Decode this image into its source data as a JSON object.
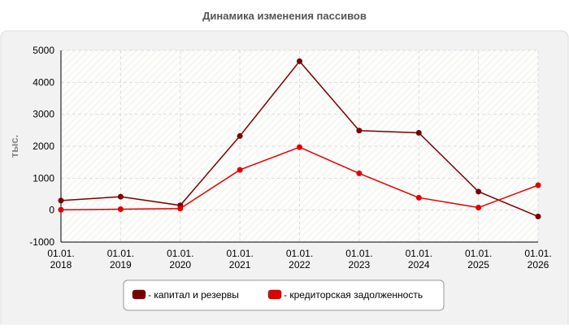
{
  "chart_data": {
    "type": "line",
    "title": "Динамика изменения пассивов",
    "y_label": "тыс.",
    "categories": [
      "01.01.\n2018",
      "01.01.\n2019",
      "01.01.\n2020",
      "01.01.\n2021",
      "01.01.\n2022",
      "01.01.\n2023",
      "01.01.\n2024",
      "01.01.\n2025",
      "01.01.\n2026"
    ],
    "series": [
      {
        "name": "- капитал и резервы",
        "color": "#7a0000",
        "values": [
          300,
          420,
          150,
          2320,
          4660,
          2490,
          2420,
          580,
          -200
        ]
      },
      {
        "name": "- кредиторская задолженность",
        "color": "#e00000",
        "values": [
          10,
          30,
          50,
          1260,
          1970,
          1150,
          390,
          80,
          780
        ]
      }
    ],
    "ylim": [
      -1000,
      5000
    ],
    "yticks": [
      -1000,
      0,
      1000,
      2000,
      3000,
      4000,
      5000
    ],
    "grid": true
  }
}
